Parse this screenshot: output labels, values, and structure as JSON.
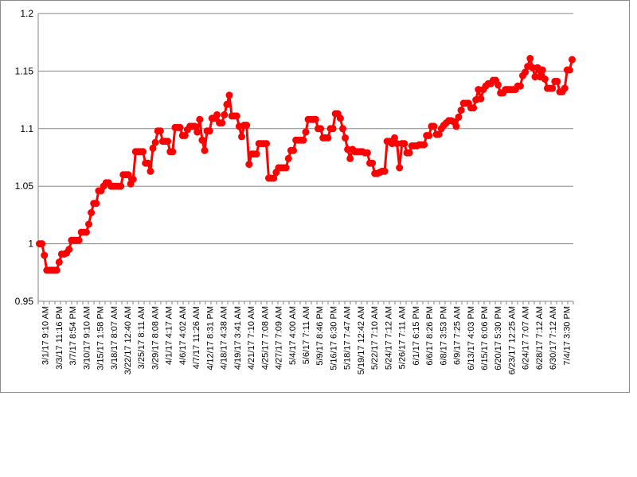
{
  "chart_data": {
    "type": "line",
    "title": "",
    "xlabel": "",
    "ylabel": "",
    "ylim": [
      0.95,
      1.2
    ],
    "yticks": [
      "0.95",
      "1",
      "1.05",
      "1.1",
      "1.15",
      "1.2"
    ],
    "grid": "horizontal",
    "legend": "none",
    "color": "#ff0000",
    "gridColor": "#868686",
    "xtick_labels": [
      "3/1/17 9:10 AM",
      "3/3/17 11:16 PM",
      "3/7/17 8:54 PM",
      "3/10/17 9:10 AM",
      "3/15/17 1:58 PM",
      "3/18/17 8:07 AM",
      "3/22/17 12:40 AM",
      "3/25/17 8:11 AM",
      "3/29/17 8:08 AM",
      "4/1/17 4:17 AM",
      "4/6/17 4:02 AM",
      "4/7/17 11:26 AM",
      "4/12/17 8:31 PM",
      "4/18/17 4:38 AM",
      "4/19/17 3:41 AM",
      "4/21/17 7:10 AM",
      "4/25/17 7:08 AM",
      "4/27/17 7:09 AM",
      "5/4/17 4:00 AM",
      "5/6/17 7:11 AM",
      "5/9/17 8:46 PM",
      "5/16/17 6:30 PM",
      "5/18/17 7:47 AM",
      "5/19/17 12:42 AM",
      "5/22/17 7:10 AM",
      "5/24/17 7:12 AM",
      "5/26/17 7:11 AM",
      "6/1/17 6:15 PM",
      "6/6/17 8:26 PM",
      "6/8/17 3:53 PM",
      "6/9/17 7:25 AM",
      "6/13/17 4:03 PM",
      "6/15/17 6:06 PM",
      "6/20/17 5:30 PM",
      "6/23/17 12:25 AM",
      "6/24/17 7:07 AM",
      "6/28/17 7:12 AM",
      "6/30/17 7:12 AM",
      "7/4/17 3:30 PM"
    ],
    "values": [
      1.0,
      1.0,
      0.99,
      0.977,
      0.977,
      0.977,
      0.977,
      0.977,
      0.984,
      0.991,
      0.991,
      0.992,
      0.995,
      1.003,
      1.003,
      1.003,
      1.003,
      1.01,
      1.01,
      1.01,
      1.017,
      1.027,
      1.035,
      1.035,
      1.046,
      1.046,
      1.05,
      1.053,
      1.053,
      1.05,
      1.05,
      1.05,
      1.05,
      1.05,
      1.06,
      1.06,
      1.06,
      1.052,
      1.056,
      1.08,
      1.08,
      1.08,
      1.08,
      1.07,
      1.07,
      1.063,
      1.083,
      1.088,
      1.098,
      1.098,
      1.089,
      1.089,
      1.089,
      1.08,
      1.08,
      1.101,
      1.101,
      1.101,
      1.094,
      1.094,
      1.099,
      1.102,
      1.102,
      1.102,
      1.097,
      1.108,
      1.09,
      1.081,
      1.098,
      1.098,
      1.109,
      1.109,
      1.112,
      1.105,
      1.105,
      1.112,
      1.121,
      1.129,
      1.111,
      1.111,
      1.111,
      1.102,
      1.093,
      1.103,
      1.103,
      1.069,
      1.078,
      1.078,
      1.078,
      1.087,
      1.087,
      1.087,
      1.087,
      1.057,
      1.057,
      1.057,
      1.062,
      1.066,
      1.066,
      1.066,
      1.066,
      1.074,
      1.081,
      1.081,
      1.09,
      1.09,
      1.09,
      1.09,
      1.097,
      1.108,
      1.108,
      1.108,
      1.108,
      1.1,
      1.1,
      1.092,
      1.092,
      1.092,
      1.1,
      1.1,
      1.113,
      1.113,
      1.109,
      1.1,
      1.092,
      1.082,
      1.074,
      1.082,
      1.08,
      1.08,
      1.08,
      1.08,
      1.079,
      1.079,
      1.07,
      1.07,
      1.061,
      1.061,
      1.062,
      1.063,
      1.063,
      1.089,
      1.089,
      1.087,
      1.092,
      1.087,
      1.066,
      1.087,
      1.087,
      1.079,
      1.079,
      1.085,
      1.085,
      1.085,
      1.086,
      1.086,
      1.086,
      1.094,
      1.094,
      1.102,
      1.102,
      1.095,
      1.095,
      1.1,
      1.103,
      1.105,
      1.107,
      1.107,
      1.106,
      1.102,
      1.11,
      1.116,
      1.122,
      1.122,
      1.122,
      1.118,
      1.118,
      1.125,
      1.134,
      1.126,
      1.134,
      1.137,
      1.139,
      1.139,
      1.142,
      1.142,
      1.138,
      1.131,
      1.131,
      1.134,
      1.134,
      1.134,
      1.134,
      1.134,
      1.137,
      1.137,
      1.146,
      1.149,
      1.154,
      1.161,
      1.153,
      1.145,
      1.153,
      1.145,
      1.151,
      1.143,
      1.135,
      1.135,
      1.135,
      1.141,
      1.141,
      1.132,
      1.132,
      1.135,
      1.151,
      1.151,
      1.16
    ]
  }
}
